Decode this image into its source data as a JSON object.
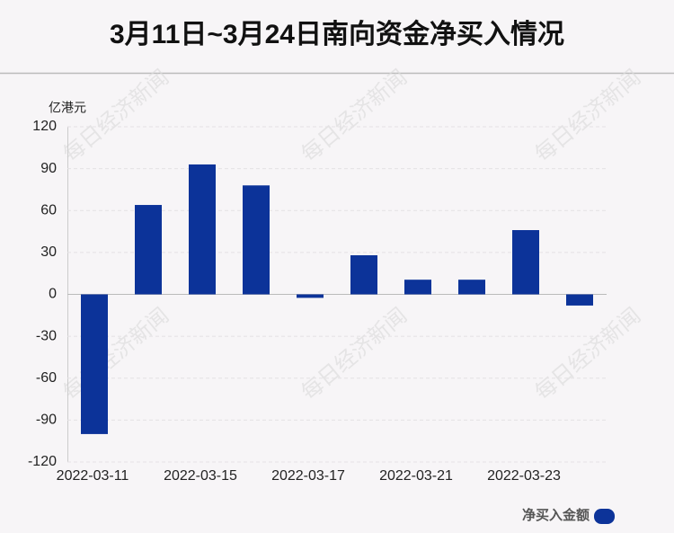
{
  "chart_data": {
    "type": "bar",
    "title": "3月11日~3月24日南向资金净买入情况",
    "y_label": "亿港元",
    "watermark": "每日经济新闻",
    "categories": [
      "2022-03-11",
      null,
      "2022-03-15",
      null,
      "2022-03-17",
      null,
      "2022-03-21",
      null,
      "2022-03-23",
      null
    ],
    "series": [
      {
        "name": "净买入金额",
        "color": "#0c3399",
        "values": [
          -100,
          64,
          93,
          78,
          -2.5,
          28,
          10.5,
          10.5,
          46,
          -8
        ]
      }
    ],
    "ylim": [
      -120,
      120
    ],
    "yticks": [
      -120,
      -90,
      -60,
      -30,
      0,
      30,
      60,
      90,
      120
    ],
    "grid": true,
    "legend": "bottom-right"
  }
}
